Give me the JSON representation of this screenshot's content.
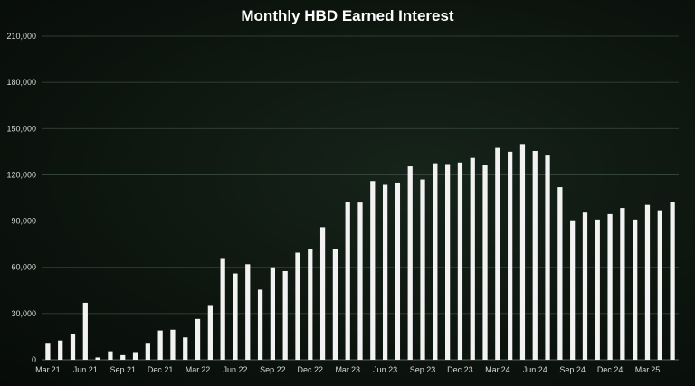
{
  "chart_data": {
    "type": "bar",
    "title": "Monthly HBD Earned Interest",
    "xlabel": "",
    "ylabel": "",
    "ylim": [
      0,
      210000
    ],
    "yticks": [
      0,
      30000,
      60000,
      90000,
      120000,
      150000,
      180000,
      210000
    ],
    "ytick_labels": [
      "0",
      "30,000",
      "60,000",
      "90,000",
      "120,000",
      "150,000",
      "180,000",
      "210,000"
    ],
    "grid": true,
    "legend": "none",
    "bar_color": "#f2f2f2",
    "categories": [
      "Mar.21",
      "Apr.21",
      "May.21",
      "Jun.21",
      "Jul.21",
      "Aug.21",
      "Sep.21",
      "Oct.21",
      "Nov.21",
      "Dec.21",
      "Jan.22",
      "Feb.22",
      "Mar.22",
      "Apr.22",
      "May.22",
      "Jun.22",
      "Jul.22",
      "Aug.22",
      "Sep.22",
      "Oct.22",
      "Nov.22",
      "Dec.22",
      "Jan.23",
      "Feb.23",
      "Mar.23",
      "Apr.23",
      "May.23",
      "Jun.23",
      "Jul.23",
      "Aug.23",
      "Sep.23",
      "Oct.23",
      "Nov.23",
      "Dec.23",
      "Jan.24",
      "Feb.24",
      "Mar.24",
      "Apr.24",
      "May.24",
      "Jun.24",
      "Jul.24",
      "Aug.24",
      "Sep.24",
      "Oct.24",
      "Nov.24",
      "Dec.24",
      "Jan.25",
      "Feb.25",
      "Mar.25",
      "Apr.25",
      "May.25"
    ],
    "values": [
      11000,
      12500,
      16500,
      37000,
      1500,
      5500,
      3000,
      5000,
      11000,
      19000,
      19500,
      14500,
      26500,
      35500,
      66000,
      56000,
      62000,
      45500,
      60000,
      57500,
      69500,
      72000,
      86000,
      72000,
      102500,
      102000,
      116000,
      113500,
      115000,
      125500,
      117000,
      127500,
      127000,
      128000,
      131000,
      126500,
      137500,
      135000,
      140000,
      135500,
      132500,
      112000,
      90500,
      95500,
      91000,
      94500,
      98500,
      91000,
      100500,
      97000,
      102500
    ],
    "xtick_labels": [
      {
        "index": 0,
        "label": "Mar.21"
      },
      {
        "index": 3,
        "label": "Jun.21"
      },
      {
        "index": 6,
        "label": "Sep.21"
      },
      {
        "index": 9,
        "label": "Dec.21"
      },
      {
        "index": 12,
        "label": "Mar.22"
      },
      {
        "index": 15,
        "label": "Jun.22"
      },
      {
        "index": 18,
        "label": "Sep.22"
      },
      {
        "index": 21,
        "label": "Dec.22"
      },
      {
        "index": 24,
        "label": "Mar.23"
      },
      {
        "index": 27,
        "label": "Jun.23"
      },
      {
        "index": 30,
        "label": "Sep.23"
      },
      {
        "index": 33,
        "label": "Dec.23"
      },
      {
        "index": 36,
        "label": "Mar.24"
      },
      {
        "index": 39,
        "label": "Jun.24"
      },
      {
        "index": 42,
        "label": "Sep.24"
      },
      {
        "index": 45,
        "label": "Dec.24"
      },
      {
        "index": 48,
        "label": "Mar.25"
      }
    ]
  }
}
